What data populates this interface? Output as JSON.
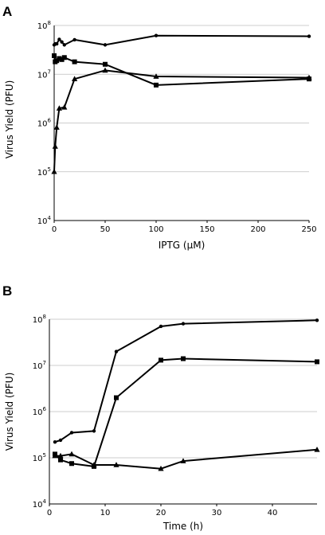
{
  "panels": {
    "a": {
      "letter": "A"
    },
    "b": {
      "letter": "B"
    }
  },
  "chart_data": [
    {
      "type": "line",
      "panel": "A",
      "title": "",
      "xlabel": "IPTG (μM)",
      "ylabel": "Virus Yield (PFU)",
      "x_ticks": [
        "0",
        "50",
        "100",
        "150",
        "200",
        "250"
      ],
      "y_ticks": [
        {
          "base": "10",
          "exp": "4"
        },
        {
          "base": "10",
          "exp": "5"
        },
        {
          "base": "10",
          "exp": "6"
        },
        {
          "base": "10",
          "exp": "7"
        },
        {
          "base": "10",
          "exp": "8"
        }
      ],
      "xlim": [
        0,
        250
      ],
      "ylim": [
        10000,
        100000000
      ],
      "yscale": "log",
      "grid": "horizontal",
      "series": [
        {
          "marker": "circle",
          "x": [
            0,
            1,
            2.5,
            5,
            7.5,
            10,
            20,
            50,
            100,
            250
          ],
          "y": [
            40000000,
            42000000,
            42000000,
            52000000,
            46000000,
            40000000,
            51000000,
            40000000,
            62000000,
            60000000
          ]
        },
        {
          "marker": "square",
          "x": [
            0,
            1,
            2.5,
            5,
            7.5,
            10,
            20,
            50,
            100,
            250
          ],
          "y": [
            24000000,
            18000000,
            19000000,
            21000000,
            20000000,
            22000000,
            18000000,
            16000000,
            6000000,
            8000000
          ]
        },
        {
          "marker": "triangle",
          "x": [
            0,
            1,
            2.5,
            5,
            10,
            20,
            50,
            100,
            250
          ],
          "y": [
            100000,
            330000,
            810000,
            2000000,
            2100000,
            8000000,
            12000000,
            9000000,
            8500000
          ]
        }
      ]
    },
    {
      "type": "line",
      "panel": "B",
      "title": "",
      "xlabel": "Time (h)",
      "ylabel": "Virus Yield (PFU)",
      "x_ticks": [
        "0",
        "10",
        "20",
        "30",
        "40"
      ],
      "y_ticks": [
        {
          "base": "10",
          "exp": "4"
        },
        {
          "base": "10",
          "exp": "5"
        },
        {
          "base": "10",
          "exp": "6"
        },
        {
          "base": "10",
          "exp": "7"
        },
        {
          "base": "10",
          "exp": "8"
        }
      ],
      "xlim": [
        0,
        48
      ],
      "ylim": [
        10000,
        100000000
      ],
      "yscale": "log",
      "grid": "horizontal",
      "series": [
        {
          "marker": "circle",
          "x": [
            1,
            2,
            4,
            8,
            12,
            20,
            24,
            48
          ],
          "y": [
            220000,
            240000,
            350000,
            380000,
            20000000,
            70000000,
            80000000,
            95000000
          ]
        },
        {
          "marker": "square",
          "x": [
            1,
            2,
            4,
            8,
            12,
            20,
            24,
            48
          ],
          "y": [
            120000,
            90000,
            75000,
            65000,
            2000000,
            13000000,
            14000000,
            12000000
          ]
        },
        {
          "marker": "triangle",
          "x": [
            1,
            2,
            4,
            8,
            12,
            20,
            24,
            48
          ],
          "y": [
            110000,
            110000,
            120000,
            70000,
            70000,
            58000,
            85000,
            150000
          ]
        }
      ]
    }
  ]
}
